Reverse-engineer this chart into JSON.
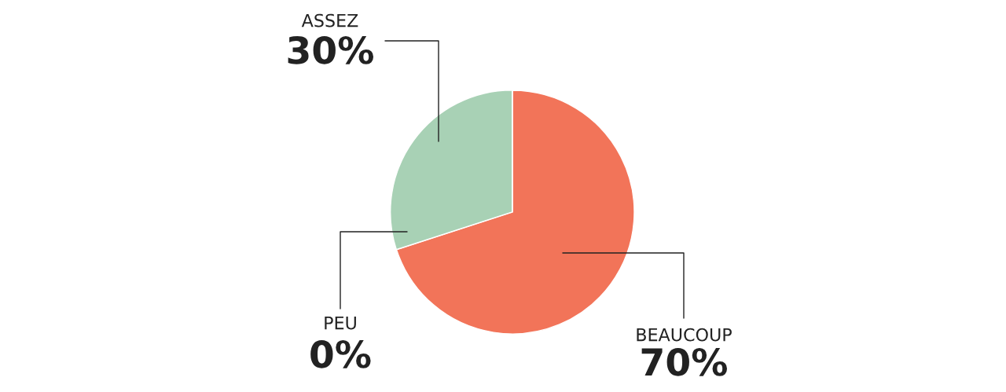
{
  "chart_data": {
    "type": "pie",
    "categories": [
      "BEAUCOUP",
      "ASSEZ",
      "PEU"
    ],
    "values": [
      70,
      30,
      0
    ],
    "value_labels": [
      "70%",
      "30%",
      "0%"
    ],
    "colors": [
      "#f27459",
      "#a8d1b5",
      "#a8d1b5"
    ],
    "legend": false
  }
}
